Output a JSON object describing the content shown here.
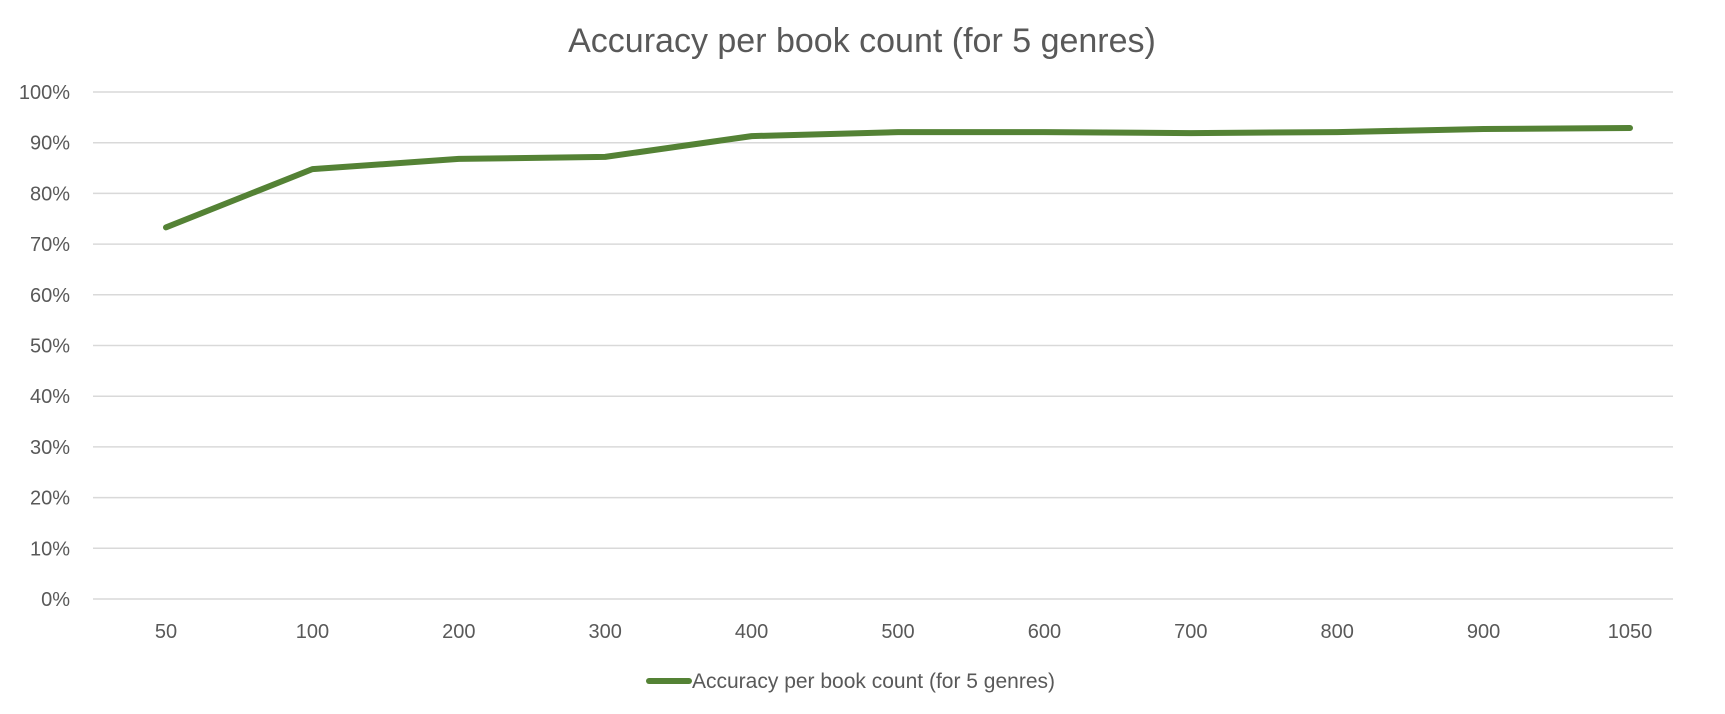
{
  "chart_data": {
    "type": "line",
    "title": "Accuracy per book count (for 5 genres)",
    "xlabel": "",
    "ylabel": "",
    "categories": [
      "50",
      "100",
      "200",
      "300",
      "400",
      "500",
      "600",
      "700",
      "800",
      "900",
      "1050"
    ],
    "series": [
      {
        "name": "Accuracy per book count (for 5 genres)",
        "values": [
          0.733,
          0.848,
          0.868,
          0.872,
          0.913,
          0.921,
          0.921,
          0.919,
          0.921,
          0.927,
          0.929
        ],
        "color": "#548235"
      }
    ],
    "y_ticks": [
      "0%",
      "10%",
      "20%",
      "30%",
      "40%",
      "50%",
      "60%",
      "70%",
      "80%",
      "90%",
      "100%"
    ],
    "ylim": [
      0,
      1
    ],
    "grid": true,
    "legend_position": "bottom"
  }
}
